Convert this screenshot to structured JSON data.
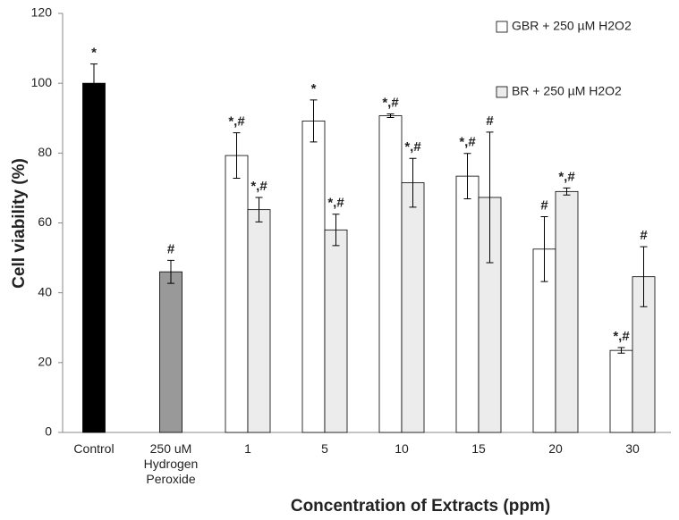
{
  "chart_data": {
    "type": "bar",
    "x_label": "Concentration of Extracts (ppm)",
    "y_label": "Cell viability (%)",
    "categories": [
      "Control",
      "250 uM Hydrogen Peroxide",
      "1",
      "5",
      "10",
      "15",
      "20",
      "30"
    ],
    "series": [
      {
        "color": "#000000",
        "values": [
          100,
          null,
          null,
          null,
          null,
          null,
          null,
          null
        ],
        "errors": [
          5.5,
          null,
          null,
          null,
          null,
          null,
          null,
          null
        ],
        "labels": [
          "*",
          null,
          null,
          null,
          null,
          null,
          null,
          null
        ]
      },
      {
        "color": "#999999",
        "values": [
          null,
          46,
          null,
          null,
          null,
          null,
          null,
          null
        ],
        "errors": [
          null,
          3.3,
          null,
          null,
          null,
          null,
          null,
          null
        ],
        "labels": [
          null,
          "#",
          null,
          null,
          null,
          null,
          null,
          null
        ]
      },
      {
        "name": "GBR + 250 µM H2O2",
        "color": "#ffffff",
        "values": [
          null,
          null,
          79.3,
          89.2,
          90.7,
          73.4,
          52.5,
          23.5
        ],
        "errors": [
          null,
          null,
          6.5,
          6,
          0.5,
          6.5,
          9.3,
          0.8
        ],
        "labels": [
          null,
          null,
          "*,#",
          "*",
          "*,#",
          "*,#",
          "#",
          "*,#"
        ]
      },
      {
        "name": "BR +  250 µM H2O2",
        "color": "#ececec",
        "values": [
          null,
          null,
          63.8,
          58,
          71.5,
          67.3,
          69,
          44.6
        ],
        "errors": [
          null,
          null,
          3.5,
          4.5,
          7,
          18.7,
          1,
          8.6
        ],
        "labels": [
          null,
          null,
          "*,#",
          "*,#",
          "*,#",
          "#",
          "*,#",
          "#"
        ]
      }
    ],
    "ylim": [
      0,
      120
    ],
    "yticks": [
      0,
      20,
      40,
      60,
      80,
      100,
      120
    ],
    "legend": "top-right"
  }
}
